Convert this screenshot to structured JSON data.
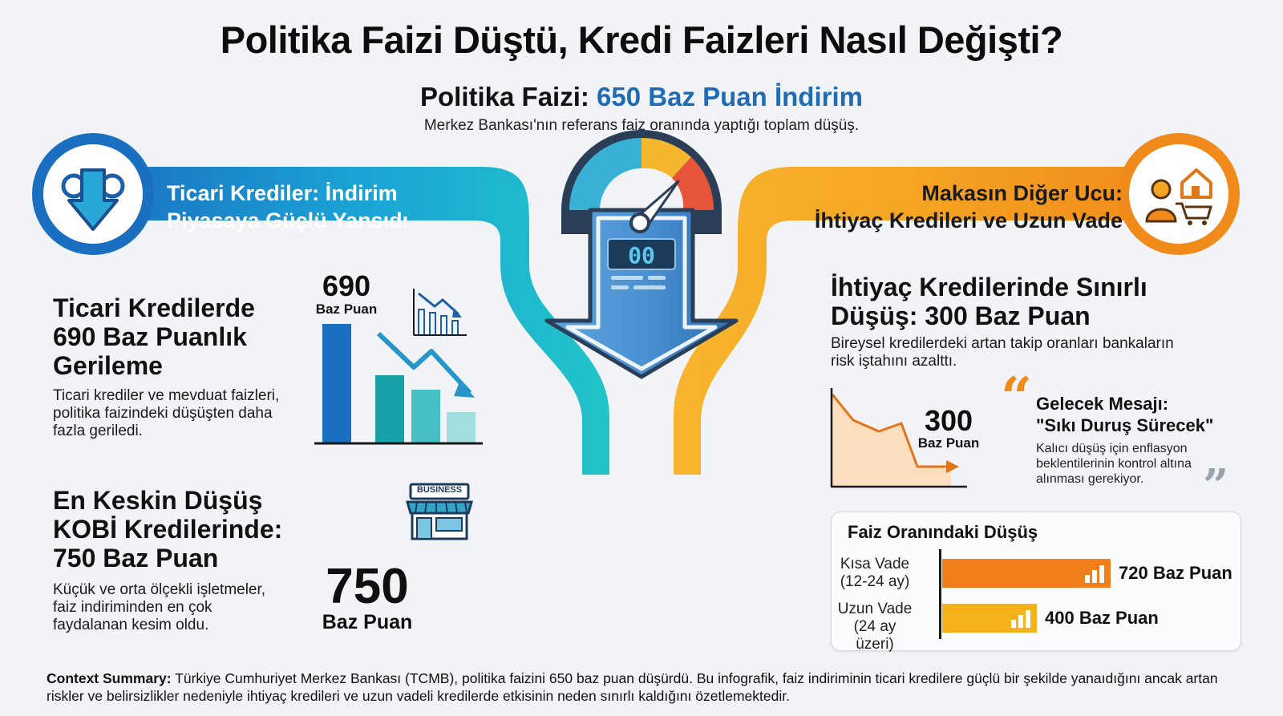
{
  "title": "Politika Faizi Düştü, Kredi Faizleri Nasıl Değişti?",
  "subtitle": {
    "prefix": "Politika Faizi:",
    "highlight": "650 Baz Puan İndirim",
    "description": "Merkez Bankası'nın referans faiz oranında yaptığı toplam düşüş."
  },
  "gauge": {
    "display": "00"
  },
  "left_banner": {
    "line1": "Ticari Krediler: İndirim",
    "line2": "Piyasaya Güçlü Yansıdı",
    "icon": "gear-down-arrow-icon"
  },
  "right_banner": {
    "line1": "Makasın Diğer Ucu:",
    "line2": "İhtiyaç Kredileri ve Uzun Vade",
    "icon": "shopper-cart-house-icon"
  },
  "ticari": {
    "title_line1": "Ticari Kredilerde",
    "title_line2": "690 Baz Puanlık",
    "title_line3": "Gerileme",
    "desc_line1": "Ticari krediler ve mevduat faizleri,",
    "desc_line2": "politika faizindeki düşüşten daha",
    "desc_line3": "fazla geriledi.",
    "number": "690",
    "unit": "Baz Puan"
  },
  "kobi": {
    "title_line1": "En Keskin Düşüş",
    "title_line2": "KOBİ Kredilerinde:",
    "title_line3": "750 Baz Puan",
    "desc_line1": "Küçük ve orta ölçekli işletmeler,",
    "desc_line2": "faiz indiriminden en çok",
    "desc_line3": "faydalanan kesim oldu.",
    "number": "750",
    "unit": "Baz Puan",
    "shop_sign": "BUSINESS"
  },
  "ihtiyac": {
    "title_line1": "İhtiyaç Kredilerinde Sınırlı",
    "title_line2": "Düşüş: 300 Baz Puan",
    "desc_line1": "Bireysel kredilerdeki artan takip oranları bankaların",
    "desc_line2": "risk iştahını azalttı.",
    "number": "300",
    "unit": "Baz Puan"
  },
  "quote": {
    "open_mark": "“",
    "close_mark": "”",
    "title_line1": "Gelecek Mesajı:",
    "title_line2": "\"Sıkı Duruş Sürecek\"",
    "text_line1": "Kalıcı düşüş için enflasyon",
    "text_line2": "beklentilerinin kontrol altına",
    "text_line3": "alınması gerekiyor."
  },
  "rate_box": {
    "title": "Faiz Oranındaki Düşüş",
    "rows": [
      {
        "label_line1": "Kısa Vade",
        "label_line2": "(12-24 ay)",
        "value": "720 Baz Puan",
        "bar_color": "#f07e1b"
      },
      {
        "label_line1": "Uzun Vade",
        "label_line2": "(24 ay üzeri)",
        "value": "400 Baz Puan",
        "bar_color": "#f5b21b"
      }
    ]
  },
  "context": {
    "label": "Context Summary:",
    "text": "Türkiye Cumhuriyet Merkez Bankası (TCMB), politika faizini 650 baz puan düşürdü. Bu infografik, faiz indiriminin ticari kredilere güçlü bir şekilde yanaıdığını ancak artan riskler ve belirsizlikler nedeniyle ihtiyaç kredileri ve uzun vadeli kredilerde etkisinin neden sınırlı kaldığını özetlemektedir."
  },
  "colors": {
    "blue_dark": "#1f6bb4",
    "blue_teal": "#1db3c8",
    "orange": "#f28a1a",
    "yellow": "#f7b733"
  }
}
